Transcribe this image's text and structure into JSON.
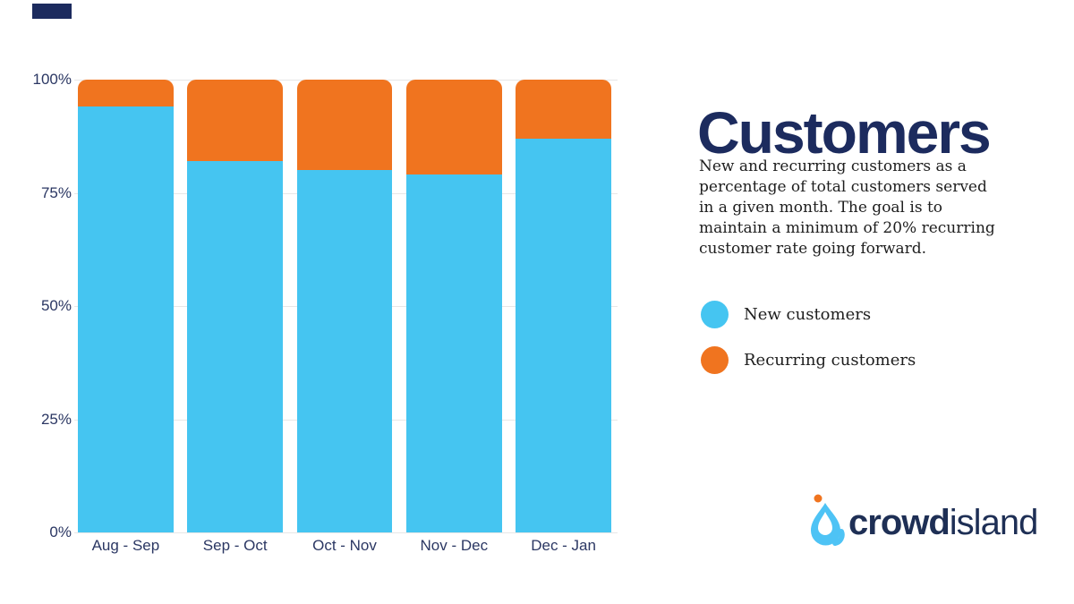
{
  "page": {
    "background": "#ffffff"
  },
  "brand_bar": {
    "color": "#1c2b5e"
  },
  "header": {
    "title": "Customers",
    "description": "New and recurring customers as a\npercentage of total customers served\nin a given month. The goal is to\nmaintain a minimum of 20% recurring\ncustomer rate going forward."
  },
  "legend": {
    "items": [
      {
        "label": "New customers",
        "color": "#45c5f1"
      },
      {
        "label": "Recurring customers",
        "color": "#f0741f"
      }
    ]
  },
  "logo": {
    "text_bold": "crowd",
    "text_light": "island",
    "drop_color": "#4ec3f5",
    "dot_color": "#f0741f",
    "text_color": "#1e2f55"
  },
  "chart_data": {
    "type": "bar",
    "stacked": true,
    "unit": "%",
    "title": "Customers",
    "categories": [
      "Aug - Sep",
      "Sep - Oct",
      "Oct - Nov",
      "Nov - Dec",
      "Dec - Jan"
    ],
    "series": [
      {
        "name": "New customers",
        "color": "#45c5f1",
        "values": [
          94,
          82,
          80,
          79,
          87
        ]
      },
      {
        "name": "Recurring customers",
        "color": "#f0741f",
        "values": [
          6,
          18,
          20,
          21,
          13
        ]
      }
    ],
    "y_ticks": [
      {
        "label": "100%",
        "value": 100
      },
      {
        "label": "75%",
        "value": 75
      },
      {
        "label": "50%",
        "value": 50
      },
      {
        "label": "25%",
        "value": 25
      },
      {
        "label": "0%",
        "value": 0
      }
    ],
    "ylim": [
      0,
      100
    ],
    "grid": true,
    "legend_position": "right"
  }
}
